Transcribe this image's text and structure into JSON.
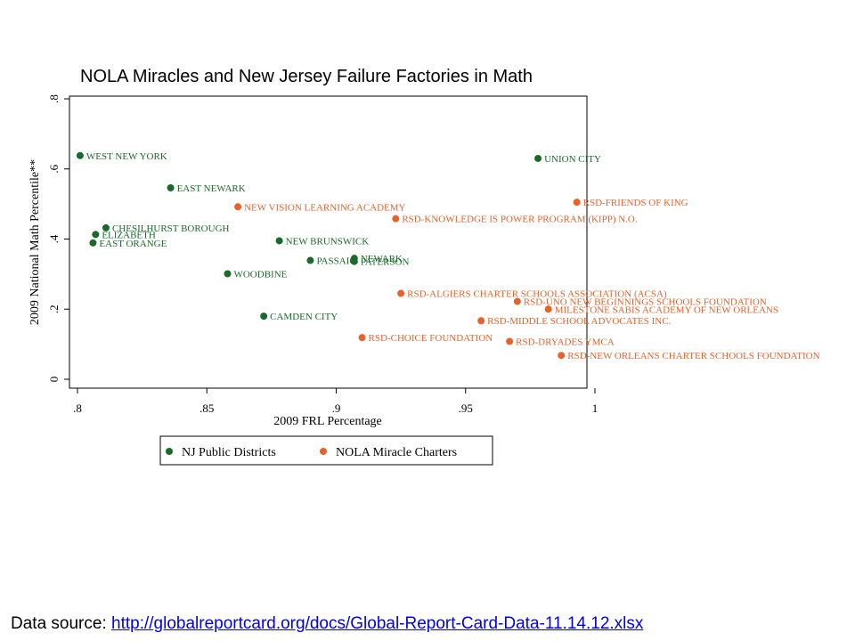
{
  "chart_data": {
    "type": "scatter",
    "title": "NOLA Miracles and New Jersey Failure Factories in Math",
    "xlabel": "2009 FRL Percentage",
    "ylabel": "2009 National Math Percentile**",
    "xlim": [
      0.8,
      1.0
    ],
    "ylim": [
      0,
      0.8
    ],
    "xticks": [
      {
        "value": 0.8,
        "label": ".8"
      },
      {
        "value": 0.85,
        "label": ".85"
      },
      {
        "value": 0.9,
        "label": ".9"
      },
      {
        "value": 0.95,
        "label": ".95"
      },
      {
        "value": 1.0,
        "label": "1"
      }
    ],
    "yticks": [
      {
        "value": 0,
        "label": "0"
      },
      {
        "value": 0.2,
        "label": ".2"
      },
      {
        "value": 0.4,
        "label": ".4"
      },
      {
        "value": 0.6,
        "label": ".6"
      },
      {
        "value": 0.8,
        "label": ".8"
      }
    ],
    "legend": [
      "NJ Public Districts",
      "NOLA Miracle Charters"
    ],
    "colors": {
      "nj": "#1a6b2a",
      "nola": "#e8622a"
    },
    "series": [
      {
        "name": "NJ Public Districts",
        "key": "nj",
        "points": [
          {
            "x": 0.801,
            "y": 0.638,
            "label": "WEST NEW YORK"
          },
          {
            "x": 0.836,
            "y": 0.546,
            "label": "EAST NEWARK"
          },
          {
            "x": 0.811,
            "y": 0.432,
            "label": "CHESILHURST BOROUGH"
          },
          {
            "x": 0.807,
            "y": 0.413,
            "label": "ELIZABETH"
          },
          {
            "x": 0.806,
            "y": 0.389,
            "label": "EAST ORANGE"
          },
          {
            "x": 0.858,
            "y": 0.301,
            "label": "WOODBINE"
          },
          {
            "x": 0.878,
            "y": 0.395,
            "label": "NEW BRUNSWICK"
          },
          {
            "x": 0.89,
            "y": 0.339,
            "label": "PASSAIC"
          },
          {
            "x": 0.907,
            "y": 0.345,
            "label": "NEWARK"
          },
          {
            "x": 0.907,
            "y": 0.336,
            "label": "PATERSON"
          },
          {
            "x": 0.872,
            "y": 0.18,
            "label": "CAMDEN CITY"
          },
          {
            "x": 0.978,
            "y": 0.63,
            "label": "UNION CITY"
          }
        ]
      },
      {
        "name": "NOLA Miracle Charters",
        "key": "nola",
        "points": [
          {
            "x": 0.862,
            "y": 0.492,
            "label": "NEW VISION LEARNING ACADEMY"
          },
          {
            "x": 0.923,
            "y": 0.458,
            "label": "RSD-KNOWLEDGE IS POWER PROGRAM (KIPP) N.O."
          },
          {
            "x": 0.993,
            "y": 0.505,
            "label": "RSD-FRIENDS OF KING"
          },
          {
            "x": 0.925,
            "y": 0.245,
            "label": "RSD-ALGIERS CHARTER SCHOOLS ASSOCIATION (ACSA)"
          },
          {
            "x": 0.97,
            "y": 0.222,
            "label": "RSD-UNO NEW BEGINNINGS SCHOOLS FOUNDATION"
          },
          {
            "x": 0.982,
            "y": 0.2,
            "label": "MILESTONE SABIS ACADEMY OF NEW ORLEANS"
          },
          {
            "x": 0.956,
            "y": 0.167,
            "label": "RSD-MIDDLE SCHOOL ADVOCATES INC."
          },
          {
            "x": 0.91,
            "y": 0.119,
            "label": "RSD-CHOICE FOUNDATION"
          },
          {
            "x": 0.967,
            "y": 0.108,
            "label": "RSD-DRYADES YMCA"
          },
          {
            "x": 0.987,
            "y": 0.068,
            "label": "RSD-NEW ORLEANS CHARTER SCHOOLS FOUNDATION"
          }
        ]
      }
    ]
  },
  "footer": {
    "prefix": "Data source: ",
    "link_text": "http://globalreportcard.org/docs/Global-Report-Card-Data-11.14.12.xlsx"
  }
}
